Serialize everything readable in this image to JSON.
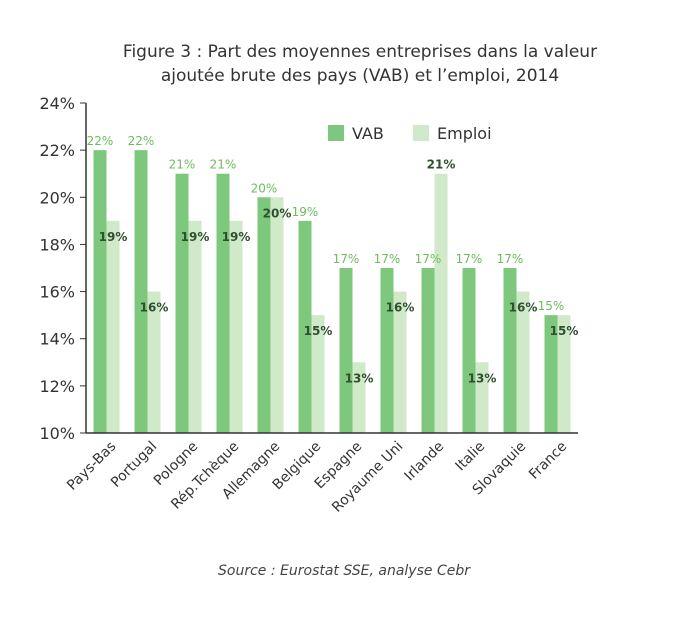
{
  "title_line1": "Figure 3 : Part des moyennes entreprises dans la valeur",
  "title_line2": "ajoutée brute des pays (VAB) et l’emploi, 2014",
  "source": "Source : Eurostat SSE, analyse Cebr",
  "colors": {
    "vab": "#7ec87e",
    "emploi": "#cfe9c9",
    "vab_label": "#6bbd5b",
    "emploi_label": "#2f4f2f",
    "axis": "#333333"
  },
  "chart_data": {
    "type": "bar",
    "title": "Figure 3 : Part des moyennes entreprises dans la valeur ajoutée brute des pays (VAB) et l’emploi, 2014",
    "categories": [
      "Pays-Bas",
      "Portugal",
      "Pologne",
      "Rép.Tchèque",
      "Allemagne",
      "Belgique",
      "Espagne",
      "Royaume Uni",
      "Irlande",
      "Italie",
      "Slovaquie",
      "France"
    ],
    "series": [
      {
        "name": "VAB",
        "values": [
          22,
          22,
          21,
          21,
          20,
          19,
          17,
          17,
          17,
          17,
          17,
          15
        ],
        "labels": [
          "22%",
          "22%",
          "21%",
          "21%",
          "20%",
          "19%",
          "17%",
          "17%",
          "17%",
          "17%",
          "17%",
          "15%"
        ]
      },
      {
        "name": "Emploi",
        "values": [
          19,
          16,
          19,
          19,
          20,
          15,
          13,
          16,
          21,
          13,
          16,
          15
        ],
        "labels": [
          "19%",
          "16%",
          "19%",
          "19%",
          "20%",
          "15%",
          "13%",
          "16%",
          "21%",
          "13%",
          "16%",
          "15%"
        ]
      }
    ],
    "ylim": [
      10,
      24
    ],
    "yticks": [
      10,
      12,
      14,
      16,
      18,
      20,
      22,
      24
    ],
    "ytick_labels": [
      "10%",
      "12%",
      "14%",
      "16%",
      "18%",
      "20%",
      "22%",
      "24%"
    ],
    "xlabel": "",
    "ylabel": "",
    "legend_position": "top-right",
    "grid": false
  }
}
